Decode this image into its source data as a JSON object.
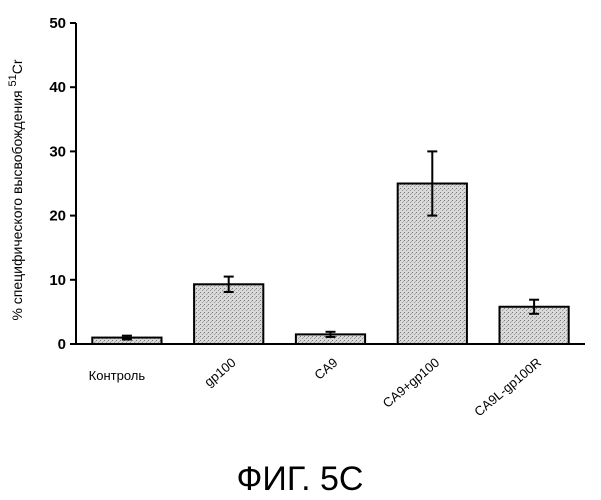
{
  "chart_data": {
    "type": "bar",
    "categories": [
      "Контроль",
      "gp100",
      "CA9",
      "CA9+gp100",
      "CA9L-gp100R"
    ],
    "values": [
      1,
      9.3,
      1.5,
      25,
      5.8
    ],
    "error_bars": [
      0.3,
      1.2,
      0.4,
      5,
      1.1
    ],
    "ylabel_main": "% специфического высвобождения ",
    "ylabel_super": "51",
    "ylabel_tail": "Cr",
    "ylim": [
      0,
      50
    ],
    "yticks": [
      "0",
      "10",
      "20",
      "30",
      "40",
      "50"
    ],
    "title": "",
    "xlabel": "",
    "grid": false,
    "bar_fill": "#c8c8c8"
  },
  "caption": "ФИГ. 5С"
}
